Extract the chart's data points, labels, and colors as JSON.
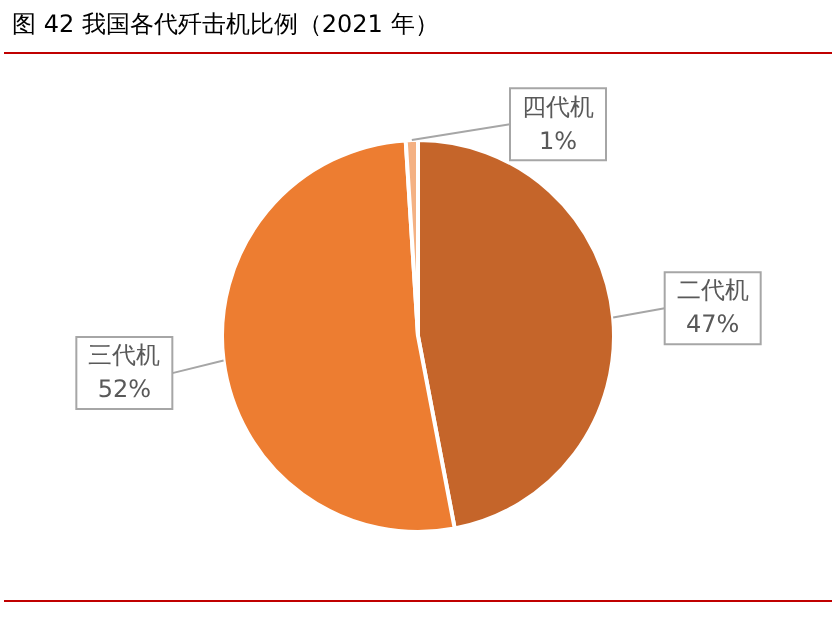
{
  "chart_data": {
    "type": "pie",
    "title": "图 42  我国各代歼击机比例（2021 年）",
    "categories": [
      "二代机",
      "三代机",
      "四代机"
    ],
    "values": [
      47,
      52,
      1
    ],
    "value_labels": [
      "47%",
      "52%",
      "1%"
    ],
    "colors": [
      "#c5652a",
      "#ed7d31",
      "#f4b183"
    ],
    "legend": false
  }
}
